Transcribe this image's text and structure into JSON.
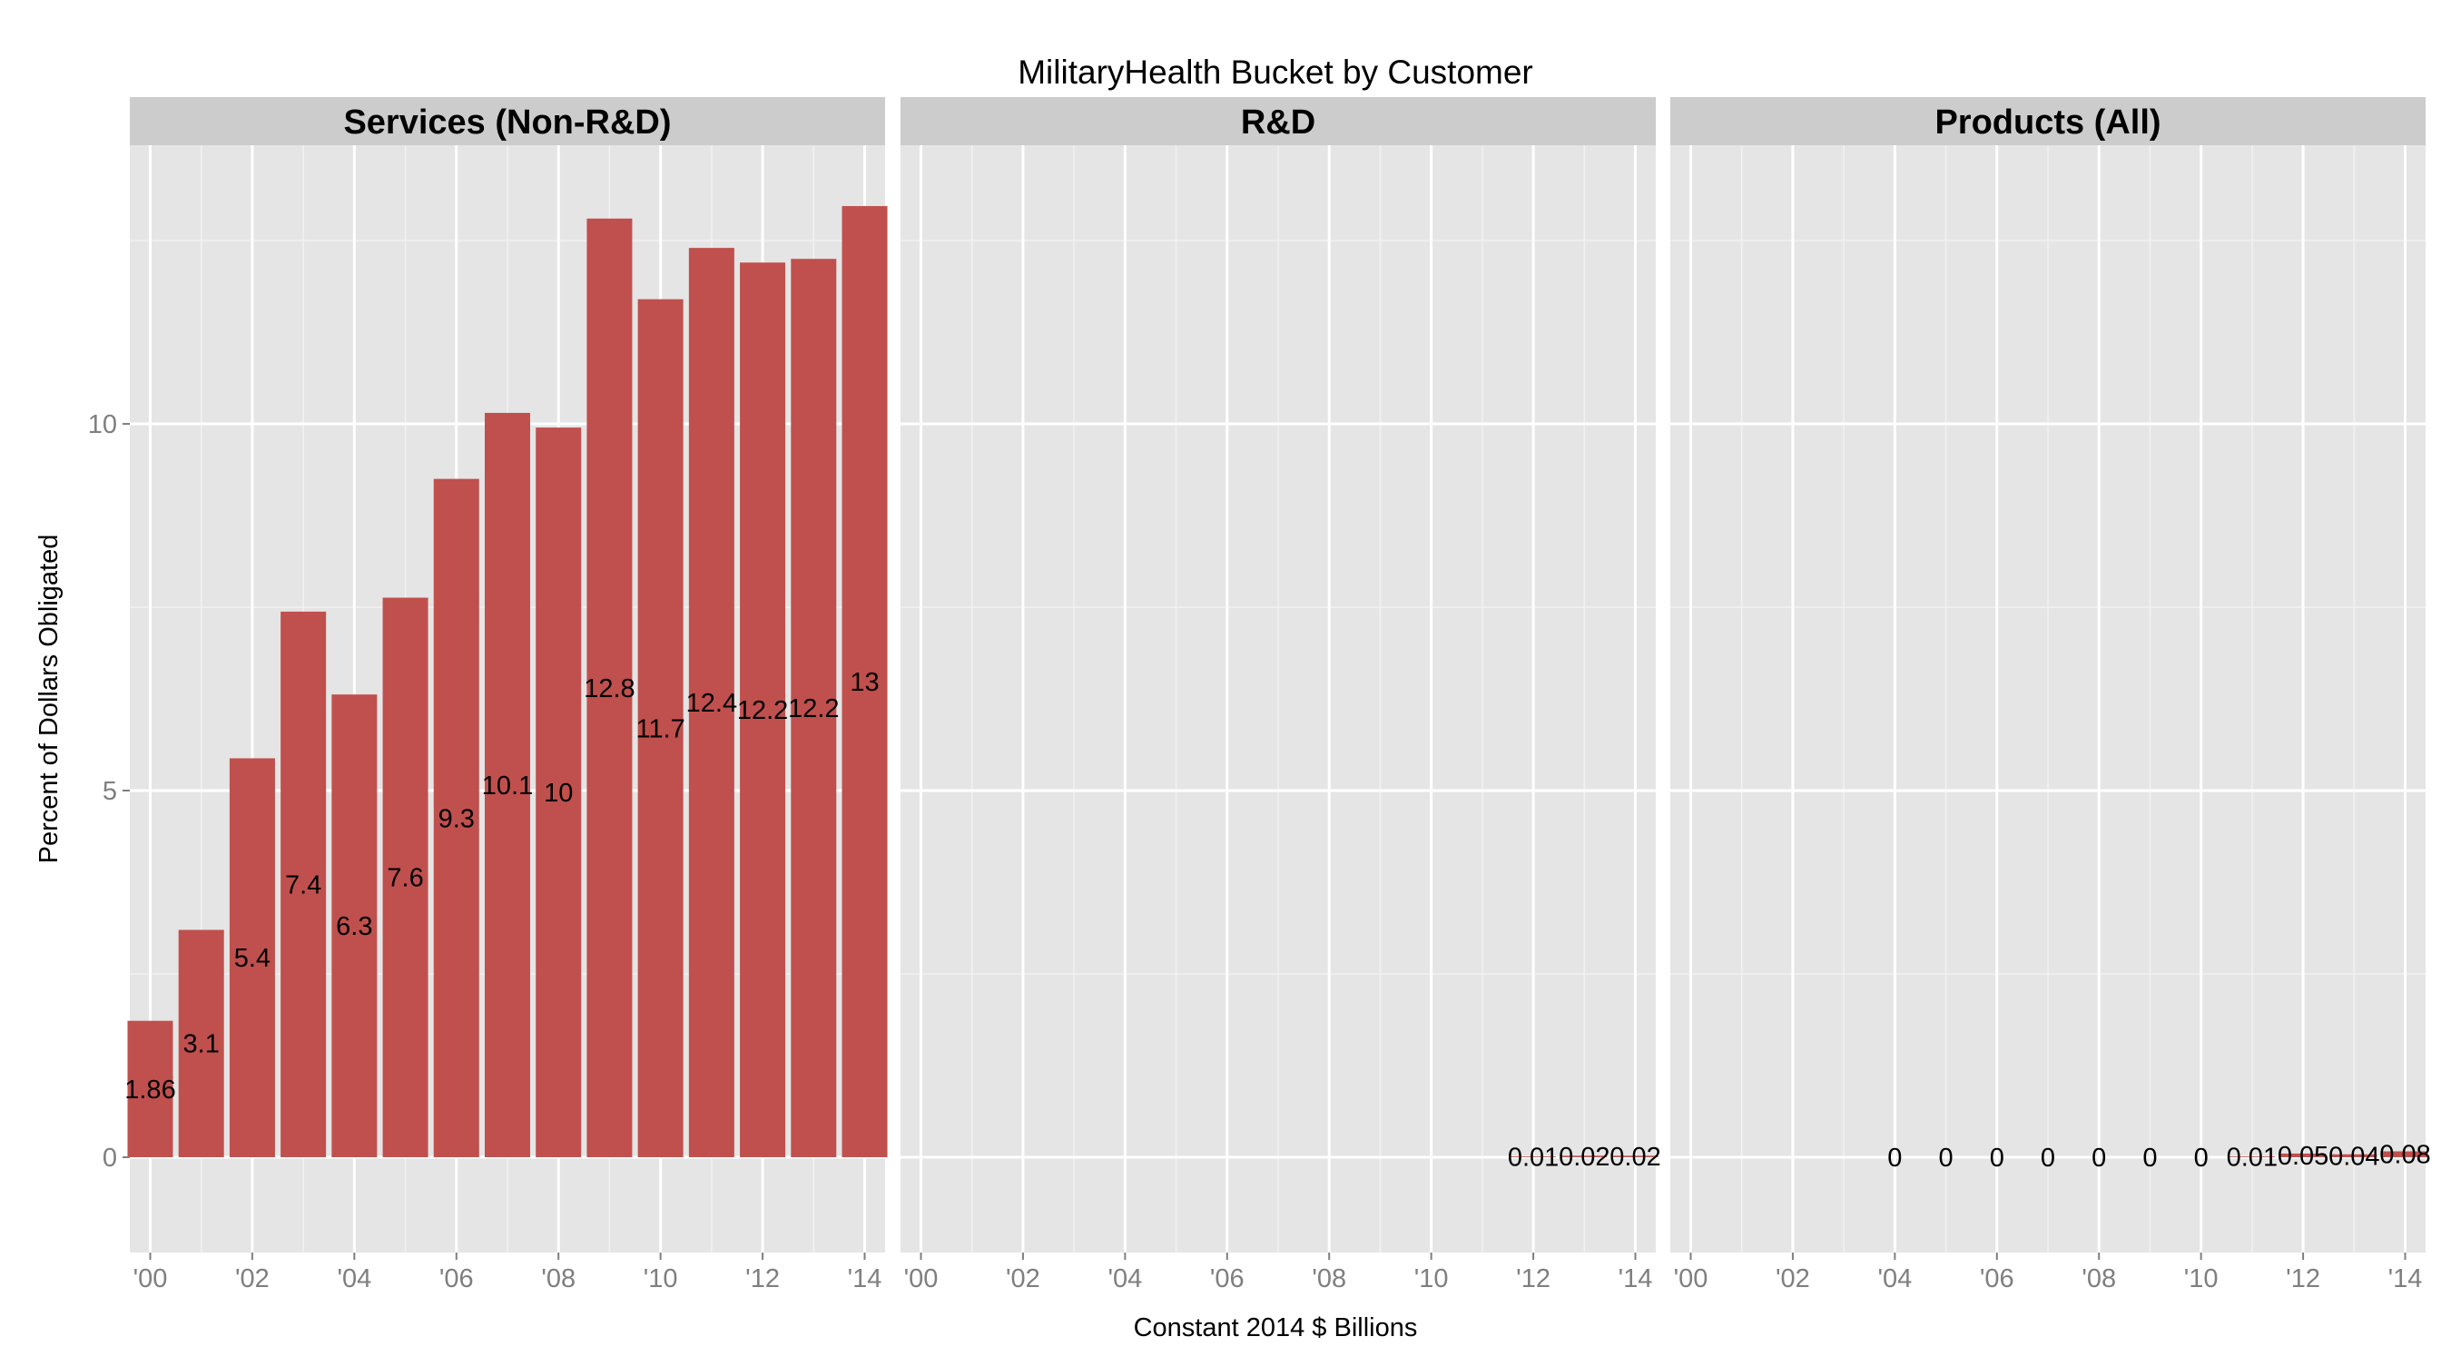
{
  "chart_data": {
    "type": "bar",
    "title": "MilitaryHealth Bucket by Customer",
    "xlabel": "Constant 2014 $ Billions",
    "ylabel": "Percent of Dollars Obligated",
    "ylim": [
      -1.3,
      13.8
    ],
    "y_ticks": [
      0,
      5,
      10
    ],
    "y_tick_labels": [
      "0",
      "5",
      "10"
    ],
    "x_domain": [
      1999.6,
      2014.4
    ],
    "x_ticks": [
      2000,
      2002,
      2004,
      2006,
      2008,
      2010,
      2012,
      2014
    ],
    "x_tick_labels": [
      "'00",
      "'02",
      "'04",
      "'06",
      "'08",
      "'10",
      "'12",
      "'14"
    ],
    "grid": true,
    "bar_color": "#c0504d",
    "panels": [
      {
        "name": "Services (Non-R&D)",
        "x": [
          2000,
          2001,
          2002,
          2003,
          2004,
          2005,
          2006,
          2007,
          2008,
          2009,
          2010,
          2011,
          2012,
          2013,
          2014
        ],
        "values": [
          1.86,
          3.1,
          5.44,
          7.44,
          6.31,
          7.63,
          9.25,
          10.15,
          9.95,
          12.8,
          11.7,
          12.4,
          12.2,
          12.25,
          12.97
        ],
        "labels": [
          "1.86",
          "3.1",
          "5.4",
          "7.4",
          "6.3",
          "7.6",
          "9.3",
          "10.1",
          "10",
          "12.8",
          "11.7",
          "12.4",
          "12.2",
          "12.2",
          "13"
        ]
      },
      {
        "name": "R&D",
        "x": [
          2012,
          2013,
          2014
        ],
        "values": [
          0.01,
          0.02,
          0.02
        ],
        "labels": [
          "0.01",
          "0.02",
          "0.02"
        ]
      },
      {
        "name": "Products (All)",
        "x": [
          2004,
          2005,
          2006,
          2007,
          2008,
          2009,
          2010,
          2011,
          2012,
          2013,
          2014
        ],
        "values": [
          0,
          0,
          0,
          0,
          0,
          0,
          0,
          0.01,
          0.05,
          0.04,
          0.08
        ],
        "labels": [
          "0",
          "0",
          "0",
          "0",
          "0",
          "0",
          "0",
          "0.01",
          "0.05",
          "0.04",
          "0.08"
        ]
      }
    ]
  }
}
